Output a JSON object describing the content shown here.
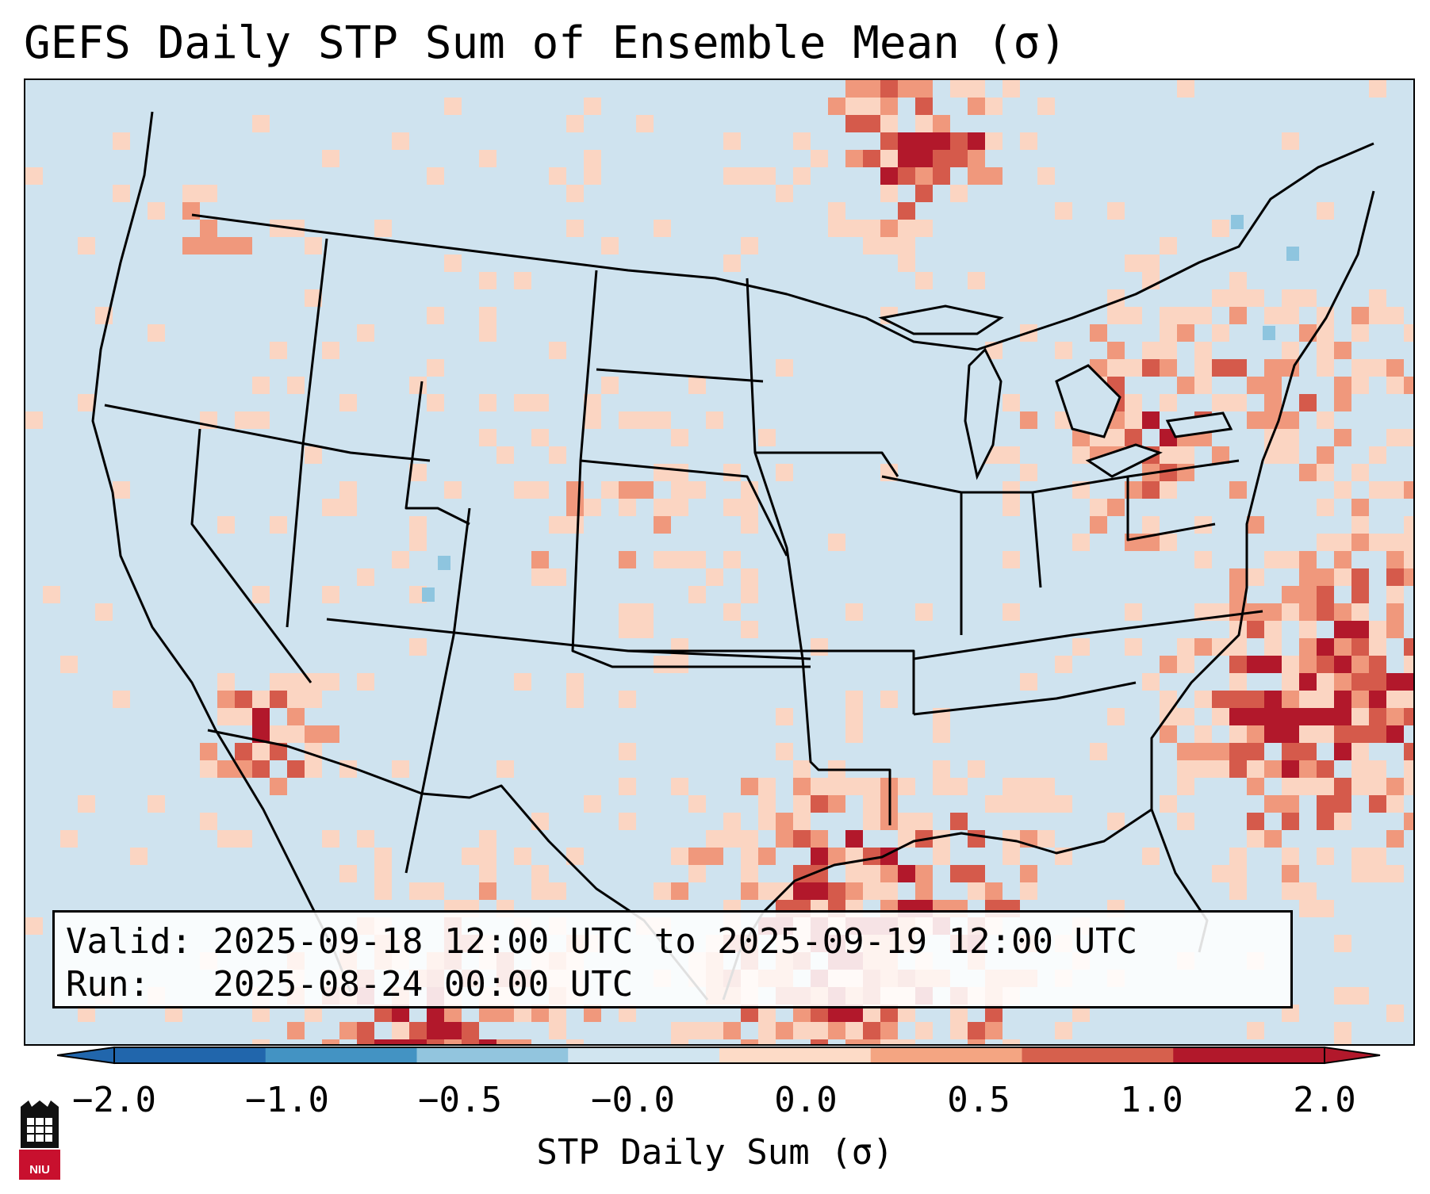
{
  "title": "GEFS Daily STP Sum of Ensemble Mean (σ)",
  "map": {
    "region": "Continental United States",
    "background_color": "#cfe3ef",
    "anomaly_colors": {
      "light": "#fbd5c2",
      "medium": "#f0987c",
      "strong": "#d55a4b",
      "extreme": "#b2182b",
      "neg_light": "#8ec5df",
      "neg_medium": "#4393c3"
    }
  },
  "info": {
    "valid_text": "Valid: 2025-09-18 12:00 UTC to 2025-09-19 12:00 UTC",
    "run_text": "Run:   2025-08-24 00:00 UTC"
  },
  "colorbar": {
    "label": "STP Daily Sum (σ)",
    "ticks": [
      "−2.0",
      "−1.0",
      "−0.5",
      "−0.0",
      "0.0",
      "0.5",
      "1.0",
      "2.0"
    ],
    "colors": [
      "#2166ac",
      "#4393c3",
      "#92c5de",
      "#d1e5f0",
      "#fddbc7",
      "#f4a582",
      "#d6604d",
      "#b2182b"
    ]
  },
  "logo": {
    "text": "NIU",
    "icon": "niu-seal-icon"
  }
}
